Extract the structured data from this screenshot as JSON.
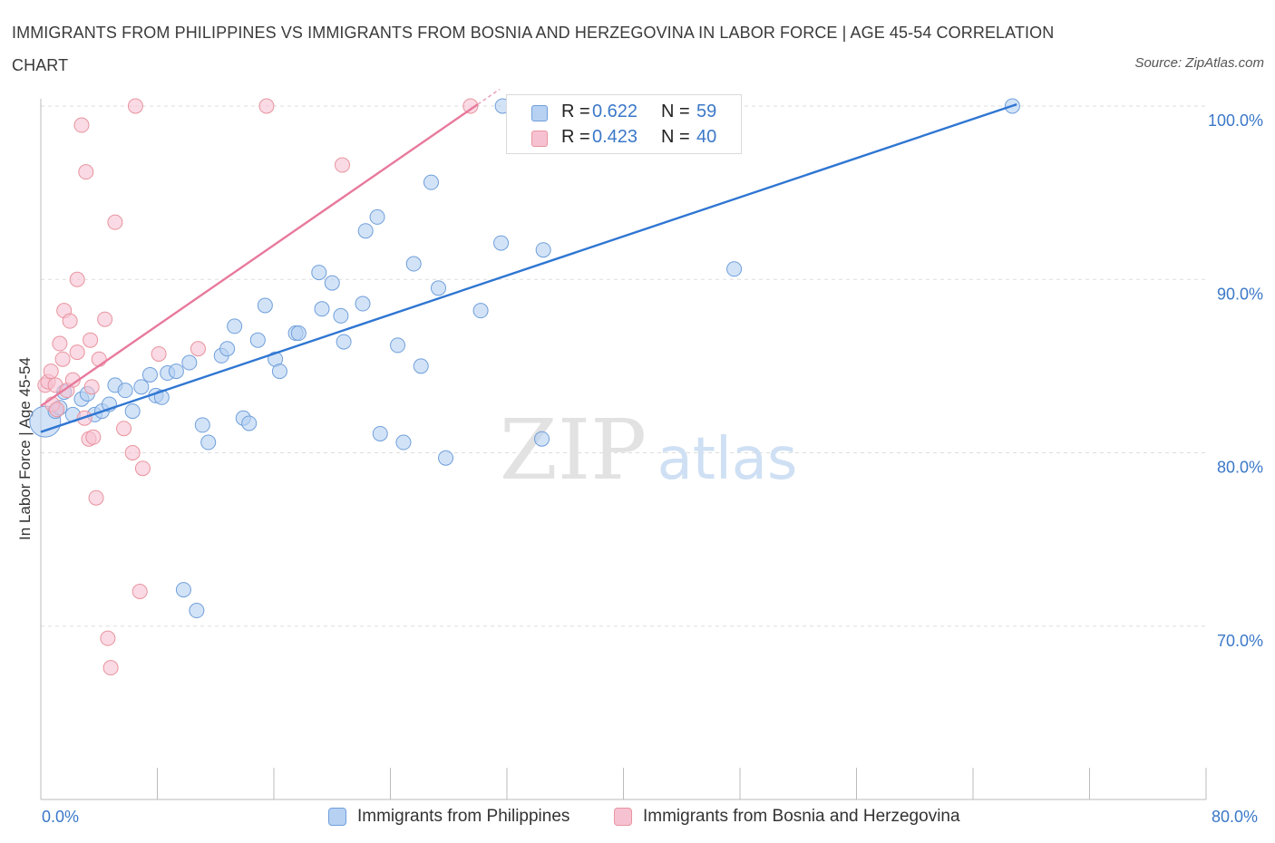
{
  "chart_data": {
    "type": "scatter",
    "title": "IMMIGRANTS FROM PHILIPPINES VS IMMIGRANTS FROM BOSNIA AND HERZEGOVINA IN LABOR FORCE | AGE 45-54 CORRELATION CHART",
    "source": "Source: ZipAtlas.com",
    "xlabel": "",
    "ylabel": "In Labor Force | Age 45-54",
    "xlim": [
      0,
      80
    ],
    "ylim": [
      60,
      100
    ],
    "x_tick_labels": [
      "0.0%",
      "80.0%"
    ],
    "y_ticks": [
      {
        "value": 100,
        "label": "100.0%"
      },
      {
        "value": 90,
        "label": "90.0%"
      },
      {
        "value": 80,
        "label": "80.0%"
      },
      {
        "value": 70,
        "label": "70.0%"
      }
    ],
    "watermark": {
      "zip": "ZIP",
      "atlas": "atlas"
    },
    "legend_stats": [
      {
        "r_label": "R = ",
        "r_value": "0.622",
        "n_label": "N = ",
        "n_value": "59"
      },
      {
        "r_label": "R = ",
        "r_value": "0.423",
        "n_label": "N = ",
        "n_value": "40"
      }
    ],
    "series": [
      {
        "name": "Immigrants from Philippines",
        "color": "#2f76d2",
        "fill": "#b6d1f2",
        "trend": {
          "x": [
            0,
            67
          ],
          "y": [
            81.2,
            100.1
          ]
        },
        "points": [
          {
            "x": 0.3,
            "y": 81.8,
            "big": true
          },
          {
            "x": 1.0,
            "y": 82.4
          },
          {
            "x": 1.3,
            "y": 82.6
          },
          {
            "x": 1.6,
            "y": 83.5
          },
          {
            "x": 2.2,
            "y": 82.2
          },
          {
            "x": 2.8,
            "y": 83.1
          },
          {
            "x": 3.2,
            "y": 83.4
          },
          {
            "x": 3.7,
            "y": 82.2
          },
          {
            "x": 4.2,
            "y": 82.4
          },
          {
            "x": 4.7,
            "y": 82.8
          },
          {
            "x": 5.1,
            "y": 83.9
          },
          {
            "x": 5.8,
            "y": 83.6
          },
          {
            "x": 6.3,
            "y": 82.4
          },
          {
            "x": 6.9,
            "y": 83.8
          },
          {
            "x": 7.5,
            "y": 84.5
          },
          {
            "x": 7.9,
            "y": 83.3
          },
          {
            "x": 8.3,
            "y": 83.2
          },
          {
            "x": 8.7,
            "y": 84.6
          },
          {
            "x": 9.3,
            "y": 84.7
          },
          {
            "x": 10.2,
            "y": 85.2
          },
          {
            "x": 11.1,
            "y": 81.6
          },
          {
            "x": 11.5,
            "y": 80.6
          },
          {
            "x": 12.4,
            "y": 85.6
          },
          {
            "x": 12.8,
            "y": 86.0
          },
          {
            "x": 13.3,
            "y": 87.3
          },
          {
            "x": 13.9,
            "y": 82.0
          },
          {
            "x": 14.3,
            "y": 81.7
          },
          {
            "x": 14.9,
            "y": 86.5
          },
          {
            "x": 15.4,
            "y": 88.5
          },
          {
            "x": 16.1,
            "y": 85.4
          },
          {
            "x": 16.4,
            "y": 84.7
          },
          {
            "x": 17.5,
            "y": 86.9
          },
          {
            "x": 17.7,
            "y": 86.9
          },
          {
            "x": 19.1,
            "y": 90.4
          },
          {
            "x": 19.3,
            "y": 88.3
          },
          {
            "x": 20.0,
            "y": 89.8
          },
          {
            "x": 20.6,
            "y": 87.9
          },
          {
            "x": 20.8,
            "y": 86.4
          },
          {
            "x": 22.1,
            "y": 88.6
          },
          {
            "x": 22.3,
            "y": 92.8
          },
          {
            "x": 23.1,
            "y": 93.6
          },
          {
            "x": 23.3,
            "y": 81.1
          },
          {
            "x": 24.5,
            "y": 86.2
          },
          {
            "x": 24.9,
            "y": 80.6
          },
          {
            "x": 25.6,
            "y": 90.9
          },
          {
            "x": 26.1,
            "y": 85.0
          },
          {
            "x": 26.8,
            "y": 95.6
          },
          {
            "x": 27.3,
            "y": 89.5
          },
          {
            "x": 27.8,
            "y": 79.7
          },
          {
            "x": 30.2,
            "y": 88.2
          },
          {
            "x": 31.6,
            "y": 92.1
          },
          {
            "x": 31.7,
            "y": 100.0
          },
          {
            "x": 34.4,
            "y": 80.8
          },
          {
            "x": 34.5,
            "y": 91.7
          },
          {
            "x": 47.6,
            "y": 90.6
          },
          {
            "x": 66.7,
            "y": 100.0
          },
          {
            "x": 9.8,
            "y": 72.1
          },
          {
            "x": 10.7,
            "y": 70.9
          }
        ]
      },
      {
        "name": "Immigrants from Bosnia and Herzegovina",
        "color": "#e8799c",
        "fill": "#f6c2d2",
        "trend": {
          "x": [
            0,
            30
          ],
          "y": [
            82.7,
            100.1
          ]
        },
        "points": [
          {
            "x": 0.3,
            "y": 83.9
          },
          {
            "x": 0.5,
            "y": 84.1
          },
          {
            "x": 0.7,
            "y": 84.7
          },
          {
            "x": 0.8,
            "y": 82.8
          },
          {
            "x": 1.0,
            "y": 83.9
          },
          {
            "x": 1.1,
            "y": 82.5
          },
          {
            "x": 1.3,
            "y": 86.3
          },
          {
            "x": 1.5,
            "y": 85.4
          },
          {
            "x": 1.6,
            "y": 88.2
          },
          {
            "x": 1.8,
            "y": 83.6
          },
          {
            "x": 2.0,
            "y": 87.6
          },
          {
            "x": 2.2,
            "y": 84.2
          },
          {
            "x": 2.5,
            "y": 85.8
          },
          {
            "x": 2.5,
            "y": 90.0
          },
          {
            "x": 2.8,
            "y": 98.9
          },
          {
            "x": 3.0,
            "y": 82.0
          },
          {
            "x": 3.1,
            "y": 96.2
          },
          {
            "x": 3.3,
            "y": 80.8
          },
          {
            "x": 3.4,
            "y": 86.5
          },
          {
            "x": 3.5,
            "y": 83.8
          },
          {
            "x": 3.6,
            "y": 80.9
          },
          {
            "x": 3.8,
            "y": 77.4
          },
          {
            "x": 4.0,
            "y": 85.4
          },
          {
            "x": 4.4,
            "y": 87.7
          },
          {
            "x": 4.6,
            "y": 69.3
          },
          {
            "x": 4.8,
            "y": 67.6
          },
          {
            "x": 5.1,
            "y": 93.3
          },
          {
            "x": 5.7,
            "y": 81.4
          },
          {
            "x": 6.3,
            "y": 80.0
          },
          {
            "x": 6.5,
            "y": 100.0
          },
          {
            "x": 6.8,
            "y": 72.0
          },
          {
            "x": 7.0,
            "y": 79.1
          },
          {
            "x": 8.1,
            "y": 85.7
          },
          {
            "x": 10.8,
            "y": 86.0
          },
          {
            "x": 15.5,
            "y": 100.0
          },
          {
            "x": 20.7,
            "y": 96.6
          },
          {
            "x": 29.5,
            "y": 100.0
          }
        ]
      }
    ]
  }
}
